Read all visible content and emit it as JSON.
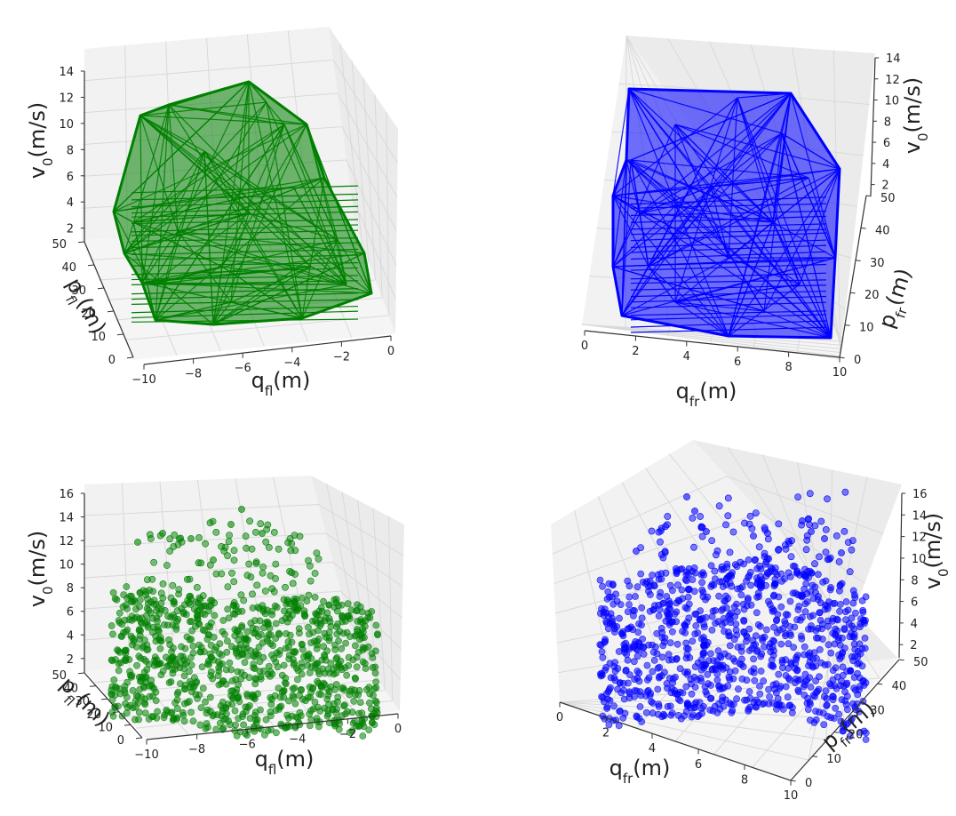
{
  "figure": {
    "background": "#ffffff",
    "pane_color": "#f2f2f2",
    "grid_color": "#d9d9d9"
  },
  "chart_data": [
    {
      "type": "3d-convex-hull",
      "color": "#008000",
      "x": {
        "label": "q",
        "sub": "fl",
        "unit": "(m)",
        "ticks": [
          "−10",
          "−8",
          "−6",
          "−4",
          "−2",
          "0"
        ],
        "range": [
          -10,
          0
        ]
      },
      "y": {
        "label": "p",
        "sub": "fl",
        "unit": "(m)",
        "ticks": [
          "0",
          "10",
          "20",
          "30",
          "40",
          "50"
        ],
        "range": [
          0,
          50
        ]
      },
      "z": {
        "label": "v",
        "sub": "0",
        "unit": "(m/s)",
        "ticks": [
          "2",
          "4",
          "6",
          "8",
          "10",
          "12",
          "14"
        ],
        "range": [
          0,
          14
        ]
      },
      "legend": "none",
      "grid": true
    },
    {
      "type": "3d-convex-hull",
      "color": "#0000ff",
      "x": {
        "label": "q",
        "sub": "fr",
        "unit": "(m)",
        "ticks": [
          "0",
          "2",
          "4",
          "6",
          "8",
          "10"
        ],
        "range": [
          0,
          10
        ]
      },
      "y": {
        "label": "p",
        "sub": "fr",
        "unit": "(m)",
        "ticks": [
          "0",
          "10",
          "20",
          "30",
          "40",
          "50"
        ],
        "range": [
          0,
          50
        ]
      },
      "z": {
        "label": "v",
        "sub": "0",
        "unit": "(m/s)",
        "ticks": [
          "2",
          "4",
          "6",
          "8",
          "10",
          "12",
          "14"
        ],
        "range": [
          0,
          14
        ]
      },
      "legend": "none",
      "grid": true
    },
    {
      "type": "3d-scatter",
      "color": "#008000",
      "x": {
        "label": "q",
        "sub": "fl",
        "unit": "(m)",
        "ticks": [
          "−10",
          "−8",
          "−6",
          "−4",
          "−2",
          "0"
        ],
        "range": [
          -10,
          0
        ]
      },
      "y": {
        "label": "p",
        "sub": "fl",
        "unit": "(m)",
        "ticks": [
          "0",
          "10",
          "20",
          "30",
          "40",
          "50"
        ],
        "range": [
          0,
          50
        ]
      },
      "z": {
        "label": "v",
        "sub": "0",
        "unit": "(m/s)",
        "ticks": [
          "2",
          "4",
          "6",
          "8",
          "10",
          "12",
          "14",
          "16"
        ],
        "range": [
          0,
          16
        ]
      },
      "legend": "none",
      "grid": true
    },
    {
      "type": "3d-scatter",
      "color": "#0000ff",
      "x": {
        "label": "q",
        "sub": "fr",
        "unit": "(m)",
        "ticks": [
          "0",
          "2",
          "4",
          "6",
          "8",
          "10"
        ],
        "range": [
          0,
          10
        ]
      },
      "y": {
        "label": "p",
        "sub": "fr",
        "unit": "(m)",
        "ticks": [
          "0",
          "10",
          "20",
          "30",
          "40",
          "50"
        ],
        "range": [
          0,
          50
        ]
      },
      "z": {
        "label": "v",
        "sub": "0",
        "unit": "(m/s)",
        "ticks": [
          "2",
          "4",
          "6",
          "8",
          "10",
          "12",
          "14",
          "16"
        ],
        "range": [
          0,
          16
        ]
      },
      "legend": "none",
      "grid": true
    }
  ]
}
